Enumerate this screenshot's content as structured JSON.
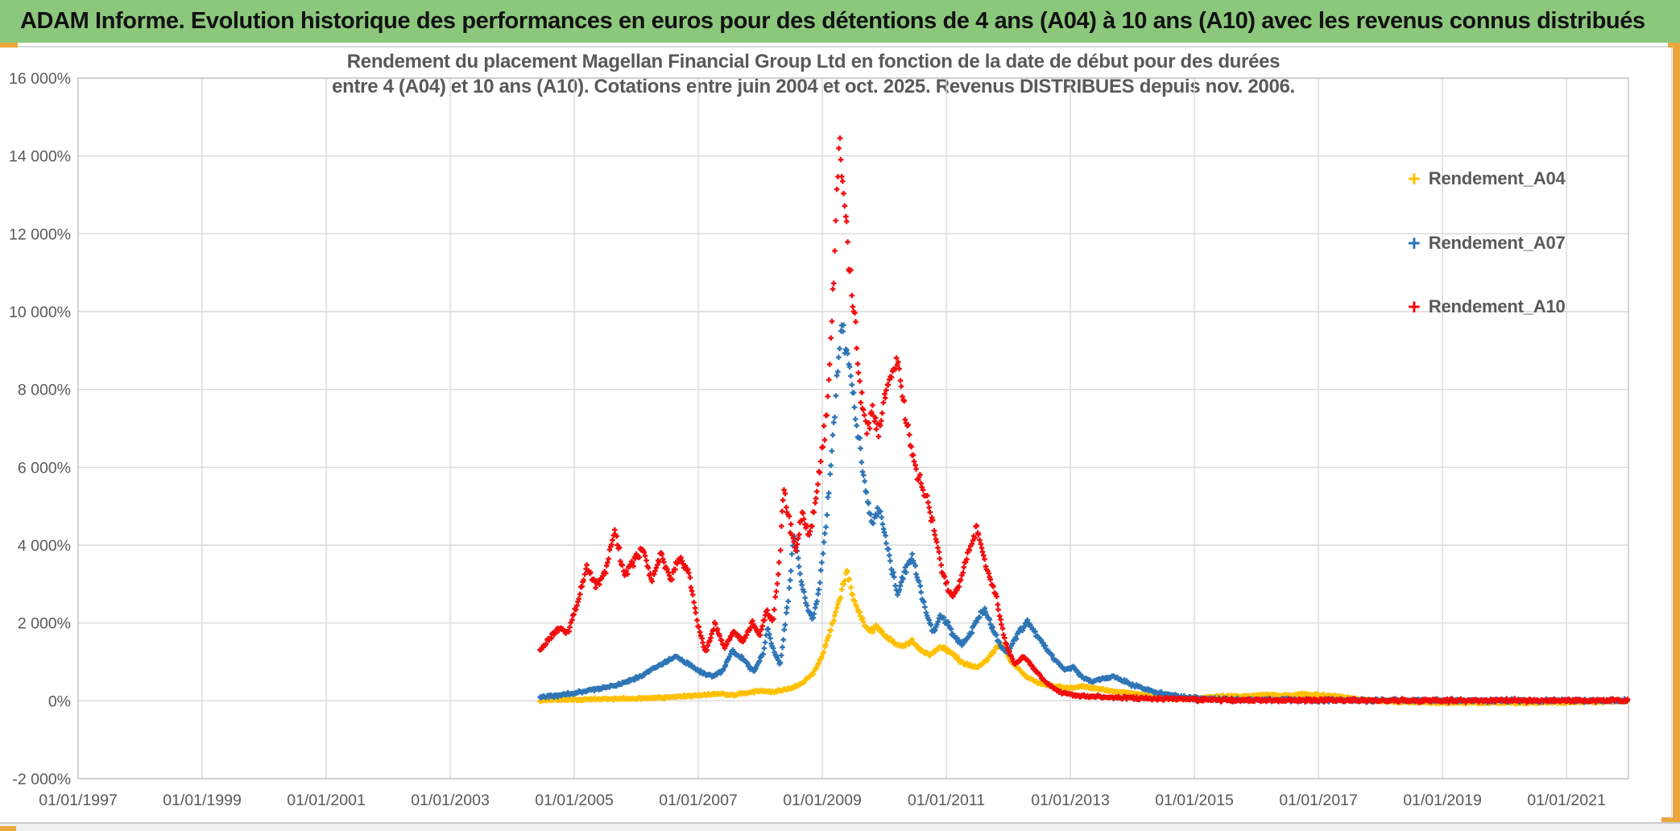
{
  "banner": {
    "title": "ADAM Informe. Evolution historique des performances en euros pour des détentions de 4 ans (A04) à 10 ans (A10) avec les revenus connus distribués"
  },
  "chart": {
    "title_line1": "Rendement du placement Magellan Financial Group Ltd en fonction de la date de début pour des durées",
    "title_line2": "entre 4 (A04) et 10 ans (A10). Cotations entre juin 2004 et oct. 2025. Revenus DISTRIBUES depuis nov. 2006.",
    "legend": [
      {
        "label": "Rendement_A04",
        "color": "#FFC000"
      },
      {
        "label": "Rendement_A07",
        "color": "#2E75B6"
      },
      {
        "label": "Rendement_A10",
        "color": "#F20D0D"
      }
    ]
  },
  "colors": {
    "banner_bg": "#8CC87C",
    "accent_gold": "#EBA63C",
    "axis_text": "#595959",
    "grid": "#D9D9D9",
    "series_a04": "#FFC000",
    "series_a07": "#2E75B6",
    "series_a10": "#F20D0D"
  },
  "chart_data": {
    "type": "scatter",
    "marker": "plus",
    "grid": true,
    "legend_position": "right",
    "x_axis": {
      "start_year": 1997,
      "end_year": 2022,
      "tick_step_years": 2,
      "ticks": [
        "01/01/1997",
        "01/01/1999",
        "01/01/2001",
        "01/01/2003",
        "01/01/2005",
        "01/01/2007",
        "01/01/2009",
        "01/01/2011",
        "01/01/2013",
        "01/01/2015",
        "01/01/2017",
        "01/01/2019",
        "01/01/2021"
      ]
    },
    "y_axis": {
      "min": -2000,
      "max": 16000,
      "step": 2000,
      "unit": "%",
      "ticks": [
        "16 000%",
        "14 000%",
        "12 000%",
        "10 000%",
        "8 000%",
        "6 000%",
        "4 000%",
        "2 000%",
        "0%",
        "-2 000%"
      ]
    },
    "series": [
      {
        "name": "Rendement_A04",
        "color": "#FFC000",
        "spread_rel": 0.05,
        "spread_min": 40,
        "keypoints": [
          [
            2004.45,
            18
          ],
          [
            2005.0,
            30
          ],
          [
            2005.5,
            45
          ],
          [
            2006.0,
            62
          ],
          [
            2006.5,
            92
          ],
          [
            2007.0,
            135
          ],
          [
            2007.3,
            185
          ],
          [
            2007.55,
            150
          ],
          [
            2007.8,
            210
          ],
          [
            2008.0,
            260
          ],
          [
            2008.2,
            230
          ],
          [
            2008.45,
            300
          ],
          [
            2008.65,
            420
          ],
          [
            2008.85,
            700
          ],
          [
            2009.0,
            1150
          ],
          [
            2009.15,
            1900
          ],
          [
            2009.3,
            2750
          ],
          [
            2009.4,
            3350
          ],
          [
            2009.5,
            2650
          ],
          [
            2009.62,
            2150
          ],
          [
            2009.75,
            1800
          ],
          [
            2009.9,
            1900
          ],
          [
            2010.0,
            1700
          ],
          [
            2010.15,
            1500
          ],
          [
            2010.3,
            1400
          ],
          [
            2010.45,
            1550
          ],
          [
            2010.6,
            1280
          ],
          [
            2010.75,
            1180
          ],
          [
            2010.9,
            1400
          ],
          [
            2011.05,
            1280
          ],
          [
            2011.2,
            1050
          ],
          [
            2011.35,
            920
          ],
          [
            2011.5,
            860
          ],
          [
            2011.65,
            1050
          ],
          [
            2011.8,
            1350
          ],
          [
            2011.9,
            1420
          ],
          [
            2012.05,
            1000
          ],
          [
            2012.2,
            780
          ],
          [
            2012.3,
            600
          ],
          [
            2012.45,
            480
          ],
          [
            2012.6,
            420
          ],
          [
            2012.75,
            380
          ],
          [
            2012.9,
            340
          ],
          [
            2013.05,
            330
          ],
          [
            2013.2,
            380
          ],
          [
            2013.35,
            330
          ],
          [
            2013.5,
            300
          ],
          [
            2013.65,
            260
          ],
          [
            2013.8,
            230
          ],
          [
            2014.0,
            190
          ],
          [
            2014.3,
            130
          ],
          [
            2014.6,
            75
          ],
          [
            2014.9,
            45
          ],
          [
            2015.2,
            85
          ],
          [
            2015.5,
            125
          ],
          [
            2015.8,
            105
          ],
          [
            2016.1,
            155
          ],
          [
            2016.4,
            135
          ],
          [
            2016.7,
            165
          ],
          [
            2017.0,
            145
          ],
          [
            2017.3,
            115
          ],
          [
            2017.6,
            55
          ],
          [
            2017.9,
            5
          ],
          [
            2018.3,
            -35
          ],
          [
            2018.8,
            -45
          ],
          [
            2019.3,
            -50
          ],
          [
            2019.8,
            -45
          ],
          [
            2020.3,
            -50
          ],
          [
            2020.8,
            -40
          ],
          [
            2021.3,
            -30
          ],
          [
            2021.7,
            -15
          ],
          [
            2022.0,
            -5
          ]
        ]
      },
      {
        "name": "Rendement_A07",
        "color": "#2E75B6",
        "spread_rel": 0.045,
        "spread_min": 55,
        "keypoints": [
          [
            2004.45,
            100
          ],
          [
            2004.7,
            140
          ],
          [
            2005.0,
            200
          ],
          [
            2005.3,
            280
          ],
          [
            2005.6,
            380
          ],
          [
            2005.9,
            520
          ],
          [
            2006.1,
            650
          ],
          [
            2006.3,
            850
          ],
          [
            2006.5,
            1020
          ],
          [
            2006.65,
            1150
          ],
          [
            2006.8,
            980
          ],
          [
            2006.95,
            820
          ],
          [
            2007.1,
            700
          ],
          [
            2007.25,
            620
          ],
          [
            2007.4,
            780
          ],
          [
            2007.55,
            1300
          ],
          [
            2007.7,
            1100
          ],
          [
            2007.9,
            760
          ],
          [
            2008.05,
            1250
          ],
          [
            2008.12,
            1850
          ],
          [
            2008.22,
            1250
          ],
          [
            2008.32,
            950
          ],
          [
            2008.45,
            2600
          ],
          [
            2008.55,
            4300
          ],
          [
            2008.65,
            3200
          ],
          [
            2008.75,
            2400
          ],
          [
            2008.85,
            2100
          ],
          [
            2008.95,
            2900
          ],
          [
            2009.05,
            4300
          ],
          [
            2009.15,
            6300
          ],
          [
            2009.25,
            8500
          ],
          [
            2009.32,
            9700
          ],
          [
            2009.42,
            8800
          ],
          [
            2009.52,
            7500
          ],
          [
            2009.62,
            6400
          ],
          [
            2009.72,
            5200
          ],
          [
            2009.82,
            4600
          ],
          [
            2009.92,
            4950
          ],
          [
            2010.02,
            4150
          ],
          [
            2010.12,
            3400
          ],
          [
            2010.22,
            2700
          ],
          [
            2010.32,
            3300
          ],
          [
            2010.45,
            3700
          ],
          [
            2010.58,
            2900
          ],
          [
            2010.7,
            2150
          ],
          [
            2010.8,
            1750
          ],
          [
            2010.9,
            2200
          ],
          [
            2011.0,
            2050
          ],
          [
            2011.12,
            1650
          ],
          [
            2011.25,
            1450
          ],
          [
            2011.4,
            1750
          ],
          [
            2011.52,
            2150
          ],
          [
            2011.62,
            2350
          ],
          [
            2011.75,
            1850
          ],
          [
            2011.88,
            1400
          ],
          [
            2012.0,
            1250
          ],
          [
            2012.15,
            1700
          ],
          [
            2012.3,
            2050
          ],
          [
            2012.5,
            1600
          ],
          [
            2012.7,
            1150
          ],
          [
            2012.9,
            800
          ],
          [
            2013.05,
            870
          ],
          [
            2013.2,
            600
          ],
          [
            2013.35,
            500
          ],
          [
            2013.5,
            560
          ],
          [
            2013.7,
            620
          ],
          [
            2013.9,
            480
          ],
          [
            2014.1,
            350
          ],
          [
            2014.35,
            230
          ],
          [
            2014.6,
            140
          ],
          [
            2014.85,
            90
          ],
          [
            2015.1,
            60
          ],
          [
            2015.5,
            40
          ],
          [
            2016.0,
            26
          ],
          [
            2017.0,
            16
          ],
          [
            2018.0,
            11
          ],
          [
            2019.0,
            9
          ],
          [
            2020.0,
            7
          ],
          [
            2021.0,
            6
          ],
          [
            2022.0,
            6
          ]
        ]
      },
      {
        "name": "Rendement_A10",
        "color": "#F20D0D",
        "spread_rel": 0.045,
        "spread_min": 55,
        "keypoints": [
          [
            2004.45,
            1300
          ],
          [
            2004.6,
            1600
          ],
          [
            2004.75,
            1850
          ],
          [
            2004.9,
            1750
          ],
          [
            2005.05,
            2500
          ],
          [
            2005.2,
            3450
          ],
          [
            2005.35,
            2950
          ],
          [
            2005.5,
            3300
          ],
          [
            2005.65,
            4400
          ],
          [
            2005.8,
            3250
          ],
          [
            2005.95,
            3550
          ],
          [
            2006.1,
            3900
          ],
          [
            2006.25,
            3150
          ],
          [
            2006.4,
            3800
          ],
          [
            2006.55,
            3100
          ],
          [
            2006.7,
            3650
          ],
          [
            2006.85,
            3300
          ],
          [
            2007.0,
            1900
          ],
          [
            2007.12,
            1250
          ],
          [
            2007.27,
            2000
          ],
          [
            2007.42,
            1350
          ],
          [
            2007.57,
            1800
          ],
          [
            2007.72,
            1500
          ],
          [
            2007.87,
            2000
          ],
          [
            2008.0,
            1700
          ],
          [
            2008.1,
            2300
          ],
          [
            2008.2,
            2000
          ],
          [
            2008.3,
            3400
          ],
          [
            2008.38,
            5500
          ],
          [
            2008.48,
            4500
          ],
          [
            2008.58,
            3800
          ],
          [
            2008.68,
            4900
          ],
          [
            2008.78,
            4200
          ],
          [
            2008.88,
            5000
          ],
          [
            2008.98,
            6200
          ],
          [
            2009.08,
            7500
          ],
          [
            2009.15,
            9500
          ],
          [
            2009.22,
            12500
          ],
          [
            2009.28,
            14300
          ],
          [
            2009.35,
            12800
          ],
          [
            2009.45,
            10800
          ],
          [
            2009.52,
            9800
          ],
          [
            2009.62,
            7800
          ],
          [
            2009.72,
            6900
          ],
          [
            2009.82,
            7500
          ],
          [
            2009.92,
            6900
          ],
          [
            2010.02,
            7900
          ],
          [
            2010.12,
            8500
          ],
          [
            2010.22,
            8800
          ],
          [
            2010.32,
            7600
          ],
          [
            2010.45,
            6300
          ],
          [
            2010.55,
            5700
          ],
          [
            2010.7,
            5200
          ],
          [
            2010.8,
            4400
          ],
          [
            2010.95,
            3200
          ],
          [
            2011.1,
            2700
          ],
          [
            2011.2,
            2950
          ],
          [
            2011.35,
            3800
          ],
          [
            2011.5,
            4450
          ],
          [
            2011.65,
            3400
          ],
          [
            2011.8,
            2700
          ],
          [
            2011.95,
            1500
          ],
          [
            2012.1,
            950
          ],
          [
            2012.25,
            1150
          ],
          [
            2012.45,
            750
          ],
          [
            2012.65,
            400
          ],
          [
            2012.85,
            220
          ],
          [
            2013.1,
            130
          ],
          [
            2013.4,
            105
          ],
          [
            2013.7,
            85
          ],
          [
            2014.0,
            70
          ],
          [
            2014.5,
            50
          ],
          [
            2015.0,
            35
          ],
          [
            2015.5,
            25
          ],
          [
            2016.0,
            18
          ],
          [
            2017.0,
            12
          ],
          [
            2018.0,
            10
          ],
          [
            2019.0,
            8
          ],
          [
            2020.0,
            7
          ],
          [
            2021.0,
            6
          ],
          [
            2022.0,
            6
          ]
        ]
      }
    ]
  }
}
